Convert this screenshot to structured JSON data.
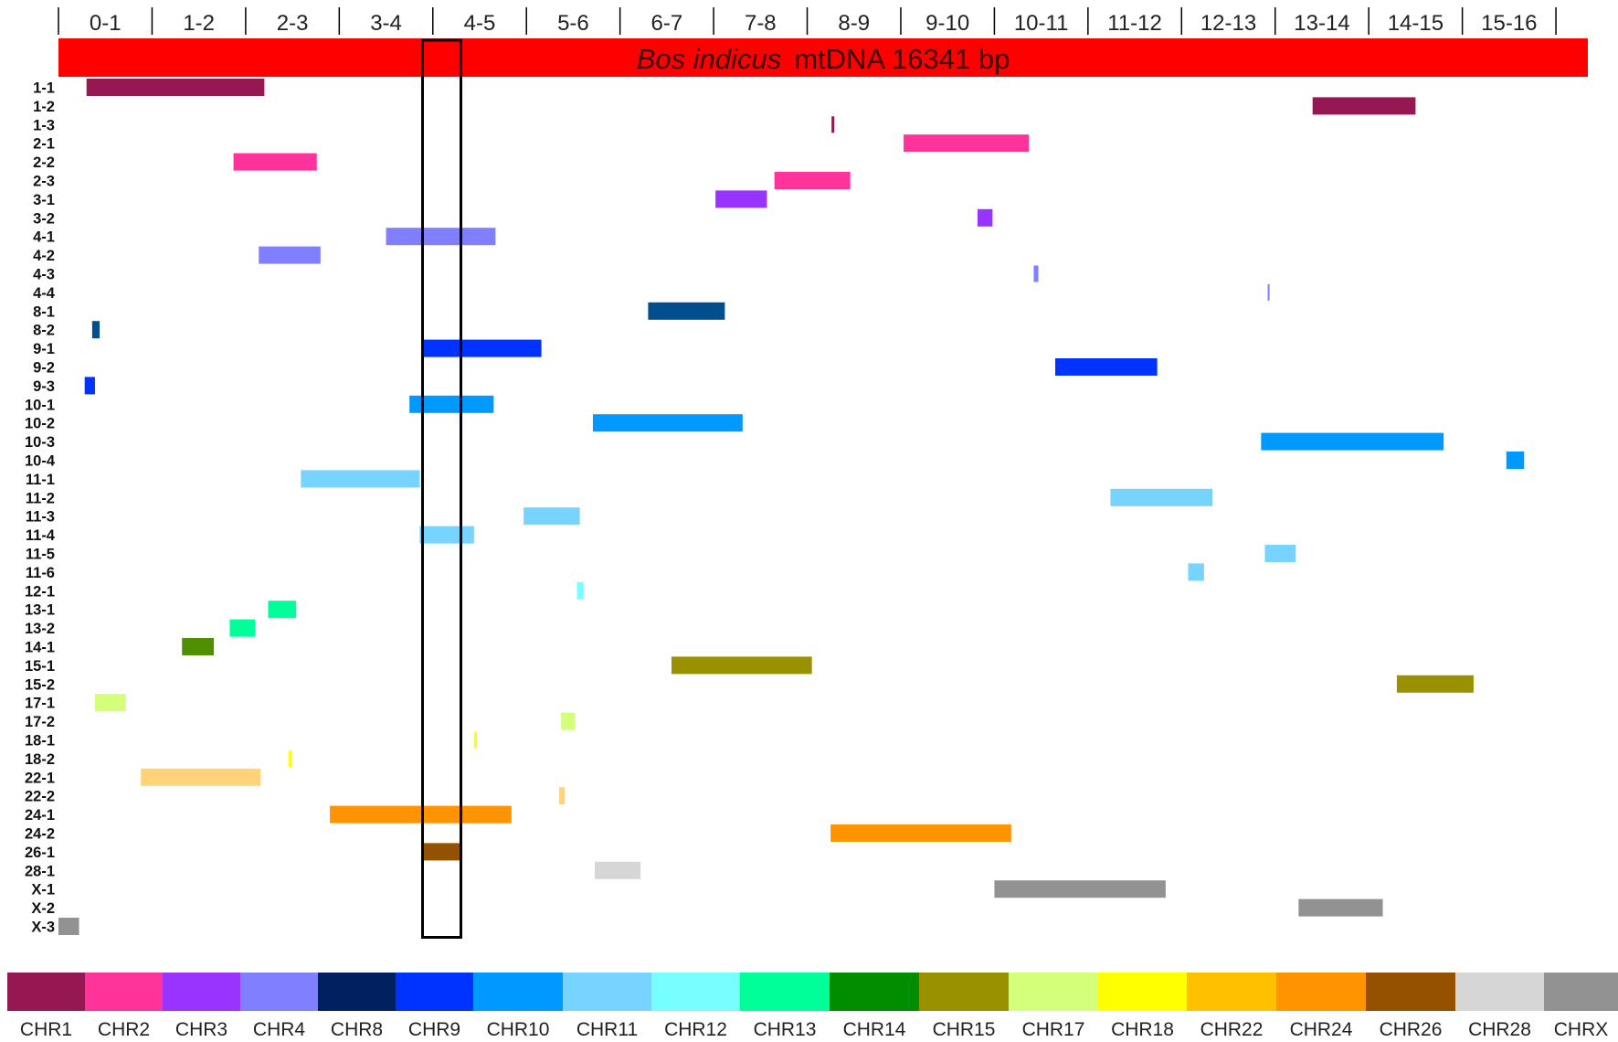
{
  "ruler": {
    "tick_labels": [
      "0-1",
      "1-2",
      "2-3",
      "3-4",
      "4-5",
      "5-6",
      "6-7",
      "7-8",
      "8-9",
      "9-10",
      "10-11",
      "11-12",
      "12-13",
      "13-14",
      "14-15",
      "15-16"
    ]
  },
  "genome_bar": {
    "species": "Bos indicus",
    "label": "mtDNA 16341 bp",
    "color": "#ff0000",
    "length_bp": 16341
  },
  "highlight": {
    "start_kb": 3.89,
    "end_kb": 4.3,
    "color": "#000000"
  },
  "rows": [
    {
      "label": "1-1",
      "chr": "CHR1",
      "start_kb": 0.3,
      "end_kb": 2.2
    },
    {
      "label": "1-2",
      "chr": "CHR1",
      "start_kb": 13.4,
      "end_kb": 14.5
    },
    {
      "label": "1-3",
      "chr": "CHR1",
      "start_kb": 8.26,
      "end_kb": 8.29
    },
    {
      "label": "2-1",
      "chr": "CHR2",
      "start_kb": 9.03,
      "end_kb": 10.37
    },
    {
      "label": "2-2",
      "chr": "CHR2",
      "start_kb": 1.87,
      "end_kb": 2.76
    },
    {
      "label": "2-3",
      "chr": "CHR2",
      "start_kb": 7.65,
      "end_kb": 8.46
    },
    {
      "label": "3-1",
      "chr": "CHR3",
      "start_kb": 7.02,
      "end_kb": 7.57
    },
    {
      "label": "3-2",
      "chr": "CHR3",
      "start_kb": 9.82,
      "end_kb": 9.98
    },
    {
      "label": "4-1",
      "chr": "CHR4",
      "start_kb": 3.5,
      "end_kb": 4.67
    },
    {
      "label": "4-2",
      "chr": "CHR4",
      "start_kb": 2.14,
      "end_kb": 2.8
    },
    {
      "label": "4-3",
      "chr": "CHR4",
      "start_kb": 10.42,
      "end_kb": 10.47
    },
    {
      "label": "4-4",
      "chr": "CHR4",
      "start_kb": 12.92,
      "end_kb": 12.94
    },
    {
      "label": "8-1",
      "chr": "CHR8",
      "start_kb": 6.3,
      "end_kb": 7.12
    },
    {
      "label": "8-2",
      "chr": "CHR8",
      "start_kb": 0.36,
      "end_kb": 0.44
    },
    {
      "label": "9-1",
      "chr": "CHR9",
      "start_kb": 3.89,
      "end_kb": 5.16
    },
    {
      "label": "9-2",
      "chr": "CHR9",
      "start_kb": 10.65,
      "end_kb": 11.74
    },
    {
      "label": "9-3",
      "chr": "CHR9",
      "start_kb": 0.28,
      "end_kb": 0.39
    },
    {
      "label": "10-1",
      "chr": "CHR10",
      "start_kb": 3.75,
      "end_kb": 4.65
    },
    {
      "label": "10-2",
      "chr": "CHR10",
      "start_kb": 5.71,
      "end_kb": 7.31
    },
    {
      "label": "10-3",
      "chr": "CHR10",
      "start_kb": 12.85,
      "end_kb": 14.8
    },
    {
      "label": "10-4",
      "chr": "CHR10",
      "start_kb": 15.47,
      "end_kb": 15.66
    },
    {
      "label": "11-1",
      "chr": "CHR11",
      "start_kb": 2.59,
      "end_kb": 3.86
    },
    {
      "label": "11-2",
      "chr": "CHR11",
      "start_kb": 11.24,
      "end_kb": 12.33
    },
    {
      "label": "11-3",
      "chr": "CHR11",
      "start_kb": 4.97,
      "end_kb": 5.57
    },
    {
      "label": "11-4",
      "chr": "CHR11",
      "start_kb": 3.86,
      "end_kb": 4.44
    },
    {
      "label": "11-5",
      "chr": "CHR11",
      "start_kb": 12.89,
      "end_kb": 13.22
    },
    {
      "label": "11-6",
      "chr": "CHR11",
      "start_kb": 12.07,
      "end_kb": 12.24
    },
    {
      "label": "12-1",
      "chr": "CHR12",
      "start_kb": 5.54,
      "end_kb": 5.61
    },
    {
      "label": "13-1",
      "chr": "CHR13",
      "start_kb": 2.24,
      "end_kb": 2.54
    },
    {
      "label": "13-2",
      "chr": "CHR13",
      "start_kb": 1.83,
      "end_kb": 2.1
    },
    {
      "label": "14-1",
      "chr": "CHR14",
      "start_kb": 1.32,
      "end_kb": 1.66
    },
    {
      "label": "15-1",
      "chr": "CHR15",
      "start_kb": 6.55,
      "end_kb": 8.05
    },
    {
      "label": "15-2",
      "chr": "CHR15",
      "start_kb": 14.3,
      "end_kb": 15.12
    },
    {
      "label": "17-1",
      "chr": "CHR17",
      "start_kb": 0.39,
      "end_kb": 0.72
    },
    {
      "label": "17-2",
      "chr": "CHR17",
      "start_kb": 5.37,
      "end_kb": 5.52
    },
    {
      "label": "18-1",
      "chr": "CHR18",
      "start_kb": 4.44,
      "end_kb": 4.47
    },
    {
      "label": "18-2",
      "chr": "CHR18",
      "start_kb": 2.46,
      "end_kb": 2.49
    },
    {
      "label": "22-1",
      "chr": "CHR22",
      "start_kb": 0.88,
      "end_kb": 2.16
    },
    {
      "label": "22-2",
      "chr": "CHR22",
      "start_kb": 5.35,
      "end_kb": 5.41
    },
    {
      "label": "24-1",
      "chr": "CHR24",
      "start_kb": 2.9,
      "end_kb": 4.84
    },
    {
      "label": "24-2",
      "chr": "CHR24",
      "start_kb": 8.25,
      "end_kb": 10.18
    },
    {
      "label": "26-1",
      "chr": "CHR26",
      "start_kb": 3.89,
      "end_kb": 4.3
    },
    {
      "label": "28-1",
      "chr": "CHR28",
      "start_kb": 5.73,
      "end_kb": 6.22
    },
    {
      "label": "X-1",
      "chr": "CHRX",
      "start_kb": 10.0,
      "end_kb": 11.83
    },
    {
      "label": "X-2",
      "chr": "CHRX",
      "start_kb": 13.25,
      "end_kb": 14.15
    },
    {
      "label": "X-3",
      "chr": "CHRX",
      "start_kb": 0.0,
      "end_kb": 0.22
    }
  ],
  "legend": [
    {
      "label": "CHR1",
      "color": "#961852"
    },
    {
      "label": "CHR2",
      "color": "#ff3399"
    },
    {
      "label": "CHR3",
      "color": "#9933ff"
    },
    {
      "label": "CHR4",
      "color": "#7f7fff"
    },
    {
      "label": "CHR8",
      "color": "#002060"
    },
    {
      "label": "CHR9",
      "color": "#0033ff"
    },
    {
      "label": "CHR10",
      "color": "#0099ff"
    },
    {
      "label": "CHR11",
      "color": "#77d3ff"
    },
    {
      "label": "CHR12",
      "color": "#77ffff"
    },
    {
      "label": "CHR13",
      "color": "#00ff99"
    },
    {
      "label": "CHR14",
      "color": "#008e00"
    },
    {
      "label": "CHR15",
      "color": "#999100"
    },
    {
      "label": "CHR17",
      "color": "#d4ff7a"
    },
    {
      "label": "CHR18",
      "color": "#ffff00"
    },
    {
      "label": "CHR22",
      "color": "#ffc000"
    },
    {
      "label": "CHR24",
      "color": "#ff9300"
    },
    {
      "label": "CHR26",
      "color": "#945200"
    },
    {
      "label": "CHR28",
      "color": "#d6d6d6"
    },
    {
      "label": "CHRX",
      "color": "#929292"
    }
  ],
  "segment_colors": {
    "CHR1": "#961852",
    "CHR2": "#ff3399",
    "CHR3": "#9933ff",
    "CHR4": "#7f7fff",
    "CHR8": "#004f8c",
    "CHR9": "#0033ff",
    "CHR10": "#0099ff",
    "CHR11": "#77d3ff",
    "CHR12": "#77ffff",
    "CHR13": "#00ff99",
    "CHR14": "#4f8f00",
    "CHR15": "#999100",
    "CHR17": "#d4ff7a",
    "CHR18": "#ffff00",
    "CHR22": "#ffd479",
    "CHR24": "#ff9300",
    "CHR26": "#945200",
    "CHR28": "#d6d6d6",
    "CHRX": "#929292"
  }
}
